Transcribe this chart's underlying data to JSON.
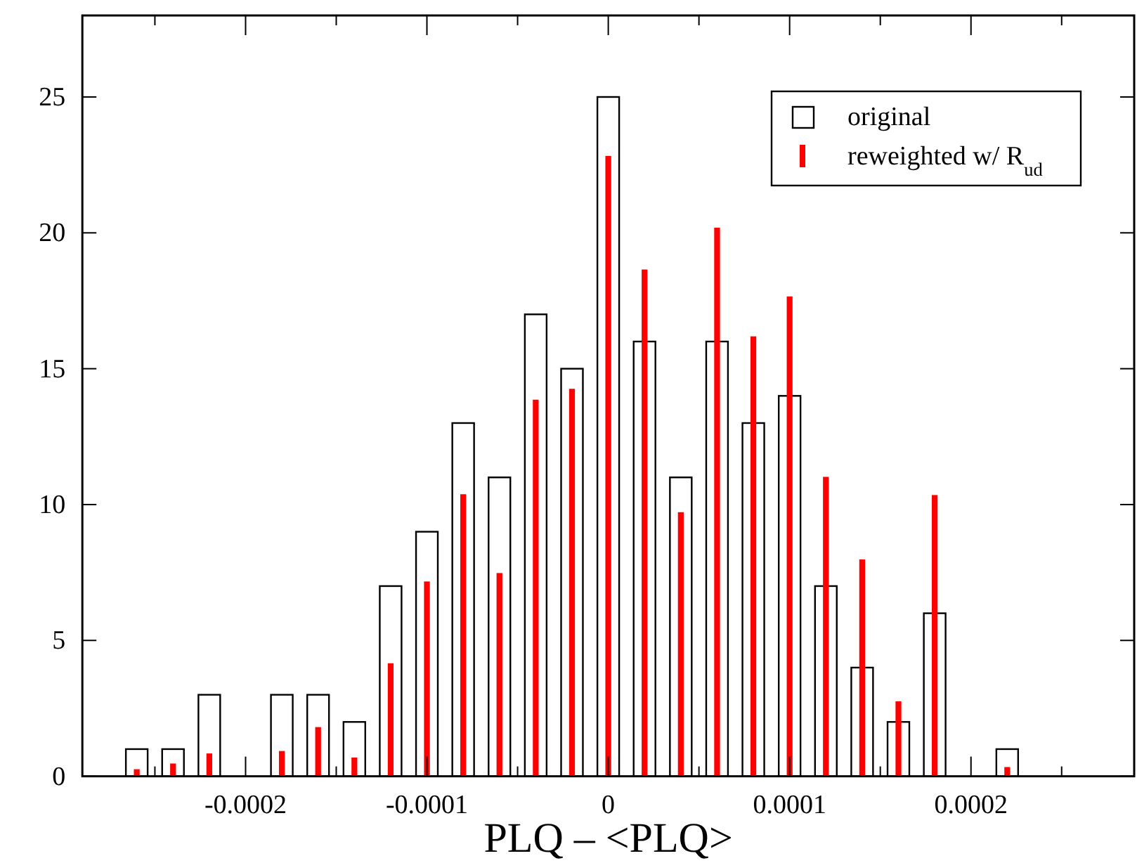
{
  "chart_data": {
    "type": "bar",
    "xlabel": "PLQ – <PLQ>",
    "x": [
      -0.00026,
      -0.00024,
      -0.00022,
      -0.0002,
      -0.00018,
      -0.00016,
      -0.00014,
      -0.00012,
      -0.0001,
      -8e-05,
      -6e-05,
      -4e-05,
      -2e-05,
      0,
      2e-05,
      4e-05,
      6e-05,
      8e-05,
      0.0001,
      0.00012,
      0.00014,
      0.00016,
      0.00018,
      0.0002,
      0.00022
    ],
    "series": [
      {
        "name": "original",
        "color": "#000000",
        "values": [
          1,
          1,
          3,
          0,
          3,
          3,
          2,
          7,
          9,
          13,
          11,
          17,
          15,
          25,
          16,
          11,
          16,
          13,
          14,
          7,
          4,
          2,
          6,
          0,
          1
        ]
      },
      {
        "name": "reweighted w/ R$_{ud}$",
        "color": "#ff0000",
        "values": [
          0.26,
          0.47,
          0.84,
          0,
          0.93,
          1.81,
          0.69,
          4.16,
          7.17,
          10.38,
          7.48,
          13.86,
          14.26,
          22.83,
          18.65,
          9.72,
          20.19,
          16.19,
          17.66,
          11.02,
          7.98,
          2.76,
          10.35,
          0,
          0.34
        ]
      }
    ],
    "xlim": [
      -0.00029,
      0.00029
    ],
    "xticks": [
      {
        "value": -0.00025,
        "label": null
      },
      {
        "value": -0.0002,
        "label": "-0.0002"
      },
      {
        "value": -0.00015,
        "label": null
      },
      {
        "value": -0.0001,
        "label": "-0.0001"
      },
      {
        "value": -5e-05,
        "label": null
      },
      0,
      {
        "value": 5e-05,
        "label": null
      },
      {
        "value": 0.0001,
        "label": "0.0001"
      },
      {
        "value": 0.00015,
        "label": null
      },
      {
        "value": 0.0002,
        "label": "0.0002"
      },
      {
        "value": 0.00025,
        "label": null
      }
    ],
    "ylim": [
      0,
      28
    ],
    "yticks": [
      0,
      5,
      10,
      15,
      20,
      25
    ],
    "legend": "top right",
    "grid": false
  }
}
